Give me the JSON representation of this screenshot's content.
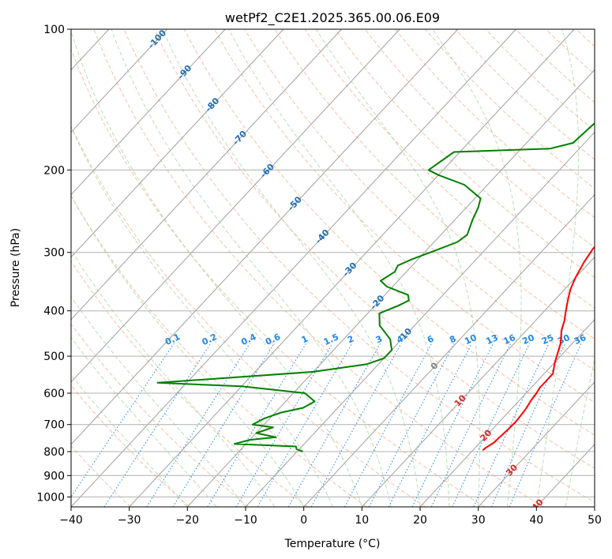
{
  "chart_data": {
    "type": "skew-t",
    "title": "wetPf2_C2E1.2025.365.00.06.E09",
    "xlabel": "Temperature (°C)",
    "ylabel": "Pressure (hPa)",
    "xlim": [
      -40,
      50
    ],
    "ylim_hpa": [
      1050,
      100
    ],
    "x_ticks": [
      "−40",
      "−30",
      "−20",
      "−10",
      "0",
      "10",
      "20",
      "30",
      "40",
      "50"
    ],
    "y_ticks": [
      "1000",
      "900",
      "800",
      "700",
      "600",
      "500",
      "400",
      "300",
      "200",
      "100"
    ],
    "y_tick_values": [
      1000,
      900,
      800,
      700,
      600,
      500,
      400,
      300,
      200,
      100
    ],
    "grid": true,
    "colors": {
      "temperature": "#ff0000",
      "dewpoint": "#008000",
      "isotherm": "#a0a0a0",
      "dry_adiabat": "#f4a582",
      "moist_adiabat": "#a6d8a6",
      "mixing_ratio": "#1e88e5",
      "isotherm_label": "#1f6fb0",
      "dry_adiabat_label": "#d62728"
    },
    "isotherm_labels": [
      "-100",
      "-90",
      "-80",
      "-70",
      "-60",
      "-50",
      "-40",
      "-30",
      "-20",
      "-10",
      "0",
      "10",
      "20",
      "30",
      "40"
    ],
    "mixing_ratio_labels": [
      "0.1",
      "0.2",
      "0.4",
      "0.6",
      "1",
      "1.5",
      "2",
      "3",
      "4",
      "6",
      "8",
      "10",
      "13",
      "16",
      "20",
      "25",
      "30",
      "36"
    ],
    "series": [
      {
        "key": "temperature",
        "points": [
          [
            8,
            100
          ],
          [
            8.6,
            110
          ],
          [
            7.3,
            125
          ],
          [
            7.5,
            140
          ],
          [
            9,
            160
          ],
          [
            10.7,
            175
          ],
          [
            12,
            190
          ],
          [
            11.4,
            200
          ],
          [
            9,
            215
          ],
          [
            8.3,
            235
          ],
          [
            8.4,
            255
          ],
          [
            8.2,
            275
          ],
          [
            8.4,
            295
          ],
          [
            9,
            315
          ],
          [
            10,
            340
          ],
          [
            11,
            360
          ],
          [
            12,
            375
          ],
          [
            13,
            390
          ],
          [
            14,
            405
          ],
          [
            15,
            420
          ],
          [
            16,
            440
          ],
          [
            18,
            470
          ],
          [
            20,
            515
          ],
          [
            21.5,
            545
          ],
          [
            21.5,
            565
          ],
          [
            21.5,
            585
          ],
          [
            21.8,
            600
          ],
          [
            22,
            620
          ],
          [
            22.5,
            650
          ],
          [
            22.8,
            690
          ],
          [
            22.7,
            720
          ],
          [
            22.5,
            745
          ],
          [
            22.4,
            765
          ],
          [
            21.8,
            785
          ],
          [
            21.7,
            795
          ]
        ]
      },
      {
        "key": "dewpoint",
        "points": [
          [
            3.5,
            100
          ],
          [
            0,
            110
          ],
          [
            -5,
            125
          ],
          [
            -10,
            140
          ],
          [
            -11.5,
            160
          ],
          [
            -12,
            175
          ],
          [
            -15,
            180
          ],
          [
            -31,
            183
          ],
          [
            -32.5,
            200
          ],
          [
            -30,
            205
          ],
          [
            -24,
            215
          ],
          [
            -19,
            230
          ],
          [
            -18,
            240
          ],
          [
            -17,
            255
          ],
          [
            -15.5,
            275
          ],
          [
            -16,
            285
          ],
          [
            -19,
            300
          ],
          [
            -21,
            310
          ],
          [
            -22.5,
            320
          ],
          [
            -22,
            330
          ],
          [
            -23,
            345
          ],
          [
            -21,
            355
          ],
          [
            -16,
            370
          ],
          [
            -15,
            380
          ],
          [
            -16,
            390
          ],
          [
            -18,
            405
          ],
          [
            -16,
            430
          ],
          [
            -12,
            460
          ],
          [
            -10,
            485
          ],
          [
            -10,
            505
          ],
          [
            -12,
            520
          ],
          [
            -20,
            540
          ],
          [
            -45,
            570
          ],
          [
            -30,
            580
          ],
          [
            -18,
            600
          ],
          [
            -15,
            625
          ],
          [
            -16,
            645
          ],
          [
            -19,
            660
          ],
          [
            -21,
            680
          ],
          [
            -22,
            700
          ],
          [
            -20,
            705
          ],
          [
            -18,
            710
          ],
          [
            -20,
            730
          ],
          [
            -16,
            745
          ],
          [
            -20,
            755
          ],
          [
            -22,
            770
          ],
          [
            -11,
            780
          ],
          [
            -10.5,
            790
          ],
          [
            -9,
            800
          ]
        ]
      }
    ]
  }
}
